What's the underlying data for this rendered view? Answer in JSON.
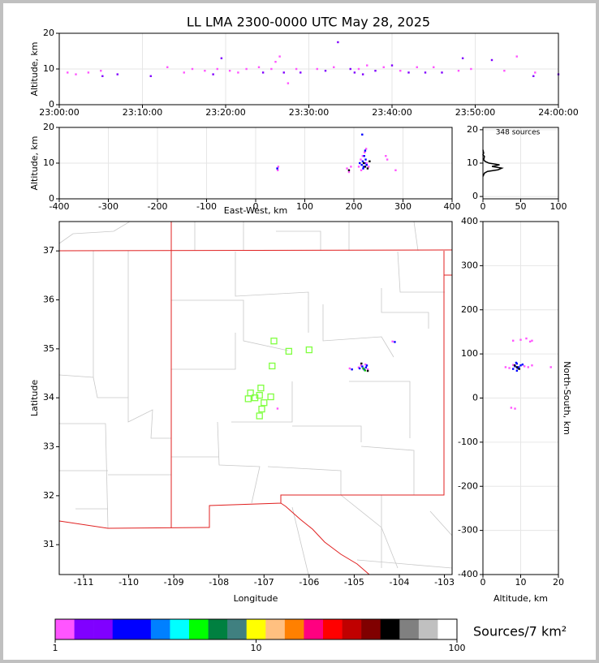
{
  "chart_data": [
    {
      "type": "scatter",
      "title": "LL LMA 2300-0000 UTC May 28, 2025",
      "ylabel": "Altitude, km",
      "xlim": [
        0,
        60
      ],
      "xticks": [
        {
          "value": 0,
          "label": "23:00:00"
        },
        {
          "value": 10,
          "label": "23:10:00"
        },
        {
          "value": 20,
          "label": "23:20:00"
        },
        {
          "value": 30,
          "label": "23:30:00"
        },
        {
          "value": 40,
          "label": "23:40:00"
        },
        {
          "value": 50,
          "label": "23:50:00"
        },
        {
          "value": 60,
          "label": "24:00:00"
        }
      ],
      "ylim": [
        0,
        20
      ],
      "yticks": [
        0,
        10,
        20
      ],
      "grid": true,
      "groups": [
        {
          "color": "#ff55ff",
          "x": [
            1,
            2,
            3.5,
            5,
            13,
            15,
            16,
            17.5,
            19,
            20.5,
            21.5,
            22.5,
            24,
            25.5,
            26,
            26.5,
            27.5,
            28.5,
            31,
            33,
            36,
            37,
            39,
            41,
            43,
            45,
            48,
            49.5,
            53.5,
            55,
            57.2
          ],
          "y": [
            9,
            8.5,
            9,
            9.5,
            10.5,
            9,
            10,
            9.5,
            10,
            9.5,
            9,
            10,
            10.5,
            10,
            12,
            13.5,
            6,
            10,
            10,
            10.5,
            10,
            11,
            10.5,
            9.5,
            10.5,
            10.5,
            9.5,
            10,
            9.5,
            13.5,
            9
          ]
        },
        {
          "color": "#8000ff",
          "x": [
            5.2,
            7,
            11,
            18.5,
            19.5,
            24.5,
            27,
            29,
            32,
            33.5,
            35,
            35.5,
            36.5,
            38,
            40,
            42,
            44,
            46,
            48.5,
            52,
            57,
            60
          ],
          "y": [
            8,
            8.5,
            8,
            8.5,
            13,
            9,
            9,
            9,
            9.5,
            17.5,
            10,
            9,
            8.5,
            9.5,
            11,
            9,
            9,
            9,
            13,
            12.5,
            8,
            8.5
          ]
        }
      ]
    },
    {
      "type": "scatter",
      "xlabel": "East-West, km",
      "ylabel": "Altitude, km",
      "xlim": [
        -400,
        400
      ],
      "xticks": [
        -400,
        -300,
        -200,
        -100,
        0,
        100,
        200,
        300,
        400
      ],
      "ylim": [
        0,
        20
      ],
      "yticks": [
        0,
        10,
        20
      ],
      "grid": true,
      "groups": [
        {
          "color": "#ff55ff",
          "x": [
            45,
            46,
            186,
            190,
            194,
            210,
            214,
            218,
            222,
            226,
            230,
            215,
            225,
            265,
            268,
            285
          ],
          "y": [
            8,
            9,
            8.5,
            7.5,
            9,
            9,
            11,
            12,
            13,
            10,
            9,
            8,
            14,
            12,
            11,
            8
          ]
        },
        {
          "color": "#0000ff",
          "x": [
            44,
            212,
            216,
            218,
            220,
            222,
            224,
            226,
            219,
            221,
            223,
            217
          ],
          "y": [
            8.5,
            10,
            9.5,
            10.5,
            9,
            10,
            11,
            9.5,
            8.5,
            12,
            13.5,
            18
          ]
        },
        {
          "color": "#000000",
          "x": [
            220,
            223,
            228,
            232,
            190
          ],
          "y": [
            10,
            9,
            8.5,
            10.5,
            8
          ]
        }
      ]
    },
    {
      "type": "line",
      "annotation": "348 sources",
      "xlim": [
        0,
        100
      ],
      "xticks": [
        0,
        50,
        100
      ],
      "ylim": [
        -0.7,
        20.7
      ],
      "yticks": [
        0,
        10,
        20
      ],
      "grid": true,
      "color": "#000000",
      "x": [
        0,
        2,
        6,
        20,
        25,
        12,
        22,
        8,
        3,
        1,
        2,
        0,
        1,
        0
      ],
      "y": [
        6,
        7,
        7.5,
        8,
        8.5,
        9,
        9.5,
        10,
        10.5,
        11,
        12,
        12.5,
        13,
        14
      ]
    },
    {
      "type": "map",
      "xlabel": "Longitude",
      "ylabel": "Latitude",
      "xlim": [
        -111.54,
        -102.83
      ],
      "xticks": [
        -111,
        -110,
        -109,
        -108,
        -107,
        -106,
        -105,
        -104,
        -103
      ],
      "ylim": [
        30.39,
        37.6
      ],
      "yticks": [
        31,
        32,
        33,
        34,
        35,
        36,
        37
      ],
      "grid": false,
      "groups": [
        {
          "color": "#ff55ff",
          "x": [
            -104.9,
            -104.85,
            -104.8,
            -104.75,
            -104.7,
            -105.1,
            -104.15,
            -106.7
          ],
          "y": [
            34.62,
            34.66,
            34.6,
            34.68,
            34.58,
            34.6,
            35.15,
            33.78
          ]
        },
        {
          "color": "#0000ff",
          "x": [
            -104.82,
            -104.78,
            -104.74,
            -104.88,
            -104.72,
            -105.05,
            -104.1
          ],
          "y": [
            34.64,
            34.58,
            34.62,
            34.6,
            34.66,
            34.58,
            35.14
          ]
        },
        {
          "color": "#00c000",
          "x": [
            -104.8,
            -104.76
          ],
          "y": [
            34.6,
            34.56
          ]
        },
        {
          "color": "#000000",
          "x": [
            -104.7,
            -104.84
          ],
          "y": [
            34.55,
            34.7
          ]
        }
      ],
      "stations": {
        "color": "#80ff40",
        "x": [
          -106.78,
          -106.45,
          -106.0,
          -106.82,
          -107.07,
          -107.3,
          -107.2,
          -107.35,
          -107.1,
          -107.0,
          -106.85,
          -107.05,
          -107.1
        ],
        "y": [
          35.16,
          34.95,
          34.98,
          34.65,
          34.2,
          34.1,
          34.0,
          33.98,
          34.05,
          33.9,
          34.02,
          33.77,
          33.63
        ]
      }
    },
    {
      "type": "scatter",
      "xlabel": "Altitude, km",
      "ylabel": "North-South, km",
      "xlim": [
        0,
        20
      ],
      "xticks": [
        0,
        10,
        20
      ],
      "ylim": [
        -400,
        400
      ],
      "yticks": [
        -400,
        -300,
        -200,
        -100,
        0,
        100,
        200,
        300,
        400
      ],
      "grid": true,
      "groups": [
        {
          "color": "#ff55ff",
          "x": [
            6,
            7,
            8,
            11,
            12,
            13,
            8,
            10,
            11.5,
            12.5,
            13,
            7.5,
            8.5,
            18
          ],
          "y": [
            70,
            68,
            75,
            72,
            70,
            74,
            130,
            132,
            135,
            128,
            130,
            -22,
            -24,
            70
          ]
        },
        {
          "color": "#0000ff",
          "x": [
            8,
            8.5,
            9,
            9.5,
            10,
            9,
            8.8,
            9.2,
            10.5
          ],
          "y": [
            66,
            72,
            78,
            70,
            74,
            62,
            80,
            68,
            76
          ]
        },
        {
          "color": "#000000",
          "x": [
            9,
            9.6,
            8.4
          ],
          "y": [
            70,
            66,
            74
          ]
        }
      ]
    },
    {
      "type": "colorbar",
      "label": "Sources/7 km²",
      "xlim": [
        1,
        100
      ],
      "xticks": [
        1,
        10,
        100
      ],
      "log": true,
      "colors": [
        "#ff55ff",
        "#8000ff",
        "#8000ff",
        "#0000ff",
        "#0000ff",
        "#0080ff",
        "#00ffff",
        "#00ff00",
        "#008040",
        "#408080",
        "#ffff00",
        "#ffc080",
        "#ff8000",
        "#ff0080",
        "#ff0000",
        "#c00000",
        "#800000",
        "#000000",
        "#808080",
        "#c0c0c0",
        "#ffffff"
      ]
    }
  ]
}
